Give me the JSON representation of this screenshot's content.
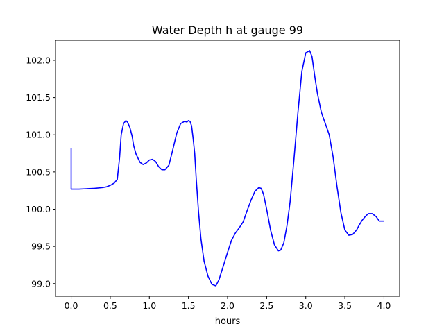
{
  "chart_data": {
    "type": "line",
    "title": "Water Depth h at gauge 99",
    "xlabel": "hours",
    "ylabel": "",
    "xlim": [
      -0.2,
      4.2
    ],
    "ylim": [
      98.83,
      102.27
    ],
    "xticks": [
      0.0,
      0.5,
      1.0,
      1.5,
      2.0,
      2.5,
      3.0,
      3.5,
      4.0
    ],
    "xtick_labels": [
      "0.0",
      "0.5",
      "1.0",
      "1.5",
      "2.0",
      "2.5",
      "3.0",
      "3.5",
      "4.0"
    ],
    "yticks": [
      99.0,
      99.5,
      100.0,
      100.5,
      101.0,
      101.5,
      102.0
    ],
    "ytick_labels": [
      "99.0",
      "99.5",
      "100.0",
      "100.5",
      "101.0",
      "101.5",
      "102.0"
    ],
    "grid": false,
    "legend": "none",
    "series": [
      {
        "color": "#0000ff",
        "x": [
          0.0,
          0.0,
          0.0,
          0.1,
          0.2,
          0.3,
          0.4,
          0.45,
          0.5,
          0.55,
          0.59,
          0.62,
          0.64,
          0.67,
          0.7,
          0.72,
          0.75,
          0.78,
          0.8,
          0.83,
          0.88,
          0.92,
          0.96,
          1.0,
          1.04,
          1.08,
          1.12,
          1.16,
          1.2,
          1.25,
          1.3,
          1.35,
          1.4,
          1.45,
          1.48,
          1.5,
          1.52,
          1.54,
          1.56,
          1.58,
          1.6,
          1.63,
          1.66,
          1.7,
          1.75,
          1.8,
          1.85,
          1.89,
          1.92,
          1.95,
          2.0,
          2.05,
          2.1,
          2.15,
          2.2,
          2.25,
          2.3,
          2.35,
          2.4,
          2.43,
          2.46,
          2.5,
          2.55,
          2.6,
          2.65,
          2.68,
          2.72,
          2.76,
          2.8,
          2.85,
          2.9,
          2.95,
          3.0,
          3.05,
          3.08,
          3.1,
          3.12,
          3.15,
          3.2,
          3.25,
          3.3,
          3.35,
          3.4,
          3.45,
          3.5,
          3.55,
          3.6,
          3.65,
          3.68,
          3.72,
          3.76,
          3.8,
          3.85,
          3.9,
          3.94,
          3.97,
          4.0
        ],
        "y": [
          100.82,
          100.53,
          100.27,
          100.27,
          100.275,
          100.28,
          100.29,
          100.3,
          100.32,
          100.35,
          100.4,
          100.7,
          101.0,
          101.15,
          101.19,
          101.17,
          101.1,
          100.98,
          100.85,
          100.74,
          100.63,
          100.6,
          100.62,
          100.66,
          100.67,
          100.64,
          100.57,
          100.53,
          100.53,
          100.59,
          100.8,
          101.02,
          101.15,
          101.18,
          101.17,
          101.19,
          101.18,
          101.12,
          100.95,
          100.75,
          100.4,
          99.95,
          99.6,
          99.3,
          99.1,
          98.99,
          98.97,
          99.05,
          99.15,
          99.25,
          99.42,
          99.58,
          99.68,
          99.75,
          99.83,
          99.98,
          100.12,
          100.24,
          100.29,
          100.28,
          100.2,
          100.0,
          99.72,
          99.52,
          99.44,
          99.45,
          99.55,
          99.78,
          100.1,
          100.68,
          101.3,
          101.85,
          102.1,
          102.13,
          102.05,
          101.9,
          101.75,
          101.55,
          101.3,
          101.15,
          101.0,
          100.7,
          100.3,
          99.95,
          99.72,
          99.65,
          99.66,
          99.72,
          99.78,
          99.85,
          99.9,
          99.94,
          99.94,
          99.9,
          99.84,
          99.84,
          99.84
        ]
      }
    ]
  }
}
